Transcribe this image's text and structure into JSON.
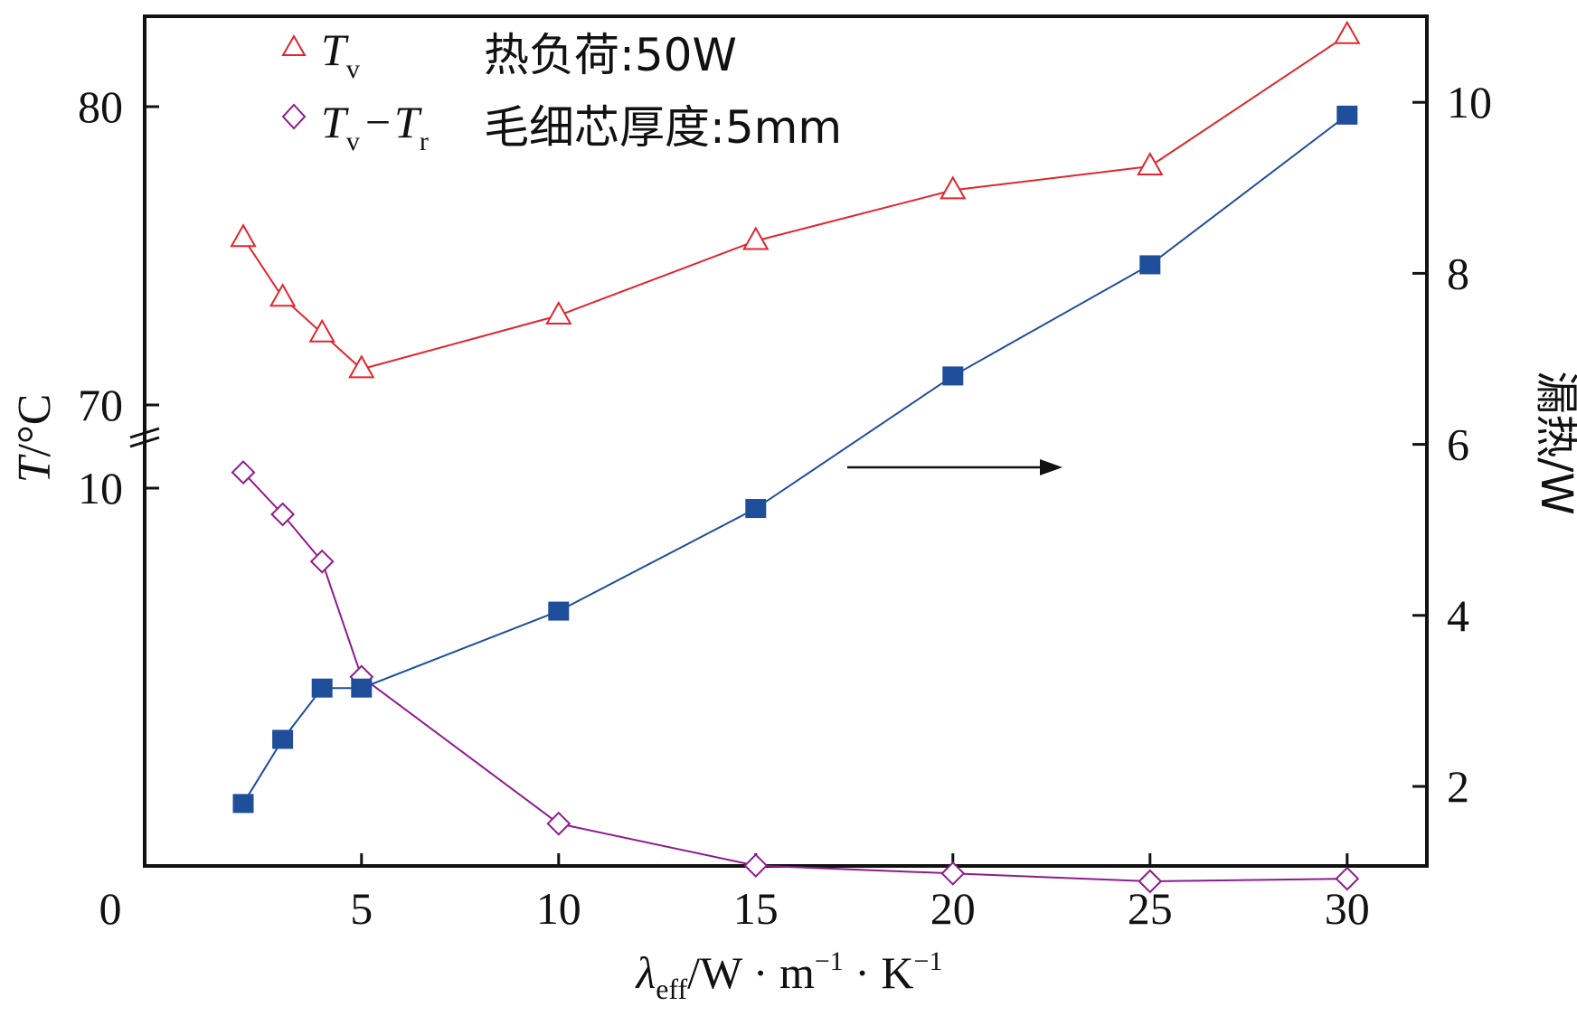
{
  "chart_data": {
    "type": "line",
    "x_axis": {
      "label_symbol": "λ",
      "label_sub": "eff",
      "label_rest": "/W · m",
      "label_exp1": "−1",
      "label_mid": " · K",
      "label_exp2": "−1",
      "ticks": [
        0,
        5,
        10,
        15,
        20,
        25,
        30
      ],
      "tick_labels": [
        "0",
        "5",
        "10",
        "15",
        "20",
        "25",
        "30"
      ],
      "range": [
        -0.5,
        32
      ]
    },
    "y_left": {
      "label_symbol": "T",
      "label_rest": "/°C",
      "broken": true,
      "upper_ticks": [
        70,
        80
      ],
      "upper_tick_labels": [
        "70",
        "80"
      ],
      "lower_ticks": [
        10
      ],
      "lower_tick_labels": [
        "10"
      ]
    },
    "y_right": {
      "label": "漏热/W",
      "ticks": [
        2,
        4,
        6,
        8,
        10
      ],
      "tick_labels": [
        "2",
        "4",
        "6",
        "8",
        "10"
      ],
      "range": [
        1.0,
        10.96
      ]
    },
    "series": [
      {
        "name": "T_v",
        "axis": "left-upper",
        "marker": "triangle-open",
        "color": "#e0262e",
        "x": [
          2,
          3,
          4,
          5,
          10,
          15,
          20,
          25,
          30
        ],
        "values": [
          75.6,
          73.6,
          72.4,
          71.2,
          73.0,
          75.5,
          77.2,
          78.0,
          82.4
        ]
      },
      {
        "name": "T_v - T_r",
        "axis": "left-lower",
        "marker": "diamond-open",
        "color": "#8e1b8e",
        "x": [
          2,
          3,
          4,
          5,
          10,
          15,
          20,
          25,
          30
        ],
        "values": [
          10.3,
          9.5,
          8.6,
          6.4,
          3.6,
          2.8,
          2.65,
          2.5,
          2.55
        ]
      },
      {
        "name": "漏热",
        "axis": "right",
        "marker": "square-filled",
        "color": "#1f4e9b",
        "x": [
          2,
          3,
          4,
          5,
          10,
          15,
          20,
          25,
          30
        ],
        "values": [
          1.8,
          2.55,
          3.15,
          3.15,
          4.05,
          5.25,
          6.8,
          8.1,
          9.85
        ]
      }
    ],
    "legend": {
      "position": "top-left",
      "entry1_sym": "T",
      "entry1_sub": "v",
      "entry2_sym1": "T",
      "entry2_sub1": "v",
      "entry2_dash": "−",
      "entry2_sym2": "T",
      "entry2_sub2": "r"
    },
    "annotations": {
      "heat_load": "热负荷:50W",
      "wick_thickness": "毛细芯厚度:5mm",
      "arrow_direction": "right"
    }
  }
}
